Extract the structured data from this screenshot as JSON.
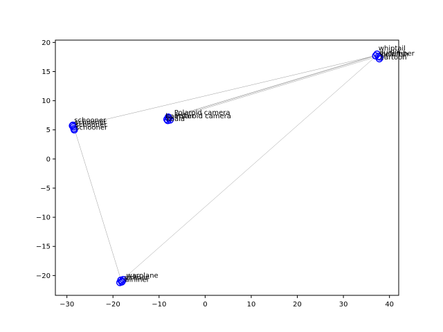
{
  "chart_data": {
    "type": "scatter",
    "title": "",
    "xlabel": "",
    "ylabel": "",
    "xlim": [
      -32.5,
      42.0
    ],
    "ylim": [
      -23.4,
      20.4
    ],
    "xticks": [
      -30,
      -20,
      -10,
      0,
      10,
      20,
      30,
      40
    ],
    "yticks": [
      -20,
      -15,
      -10,
      -5,
      0,
      5,
      10,
      15,
      20
    ],
    "grid": false,
    "marker_color": "#0000ff",
    "edge_color": "#808080",
    "clusters": [
      {
        "points": [
          {
            "x": -28.7,
            "y": 5.8,
            "label": "schooner"
          },
          {
            "x": -28.6,
            "y": 5.5,
            "label": "schooner"
          },
          {
            "x": -28.8,
            "y": 5.7,
            "label": "schooner"
          },
          {
            "x": -28.5,
            "y": 5.2,
            "label": "schooner"
          },
          {
            "x": -28.4,
            "y": 5.0,
            "label": "schooner"
          }
        ]
      },
      {
        "points": [
          {
            "x": -8.0,
            "y": 7.2,
            "label": "Polaroid camera"
          },
          {
            "x": -8.3,
            "y": 6.8,
            "label": "Polaroid camera"
          },
          {
            "x": -7.9,
            "y": 7.0,
            "label": "hamster"
          },
          {
            "x": -8.1,
            "y": 6.6,
            "label": "hamster"
          },
          {
            "x": -7.6,
            "y": 6.7,
            "label": "koala"
          }
        ]
      },
      {
        "points": [
          {
            "x": 37.3,
            "y": 18.0,
            "label": "whiptail"
          },
          {
            "x": 37.6,
            "y": 17.6,
            "label": "dunlin"
          },
          {
            "x": 37.9,
            "y": 17.5,
            "label": "cucumber"
          },
          {
            "x": 37.0,
            "y": 17.7,
            "label": "goldfish"
          },
          {
            "x": 37.8,
            "y": 17.2,
            "label": "cartoon"
          }
        ]
      },
      {
        "points": [
          {
            "x": -18.3,
            "y": -20.8,
            "label": "warplane"
          },
          {
            "x": -18.0,
            "y": -21.0,
            "label": "airliner"
          },
          {
            "x": -18.5,
            "y": -21.2,
            "label": "airliner"
          },
          {
            "x": -17.8,
            "y": -20.7,
            "label": "warplane"
          },
          {
            "x": -18.1,
            "y": -21.1,
            "label": "airliner"
          }
        ]
      }
    ],
    "edges": [
      [
        [
          -28.5,
          5.5
        ],
        [
          37.3,
          17.8
        ]
      ],
      [
        [
          -28.5,
          5.5
        ],
        [
          -18.2,
          -20.9
        ]
      ],
      [
        [
          -18.2,
          -20.9
        ],
        [
          37.3,
          17.8
        ]
      ],
      [
        [
          -7.8,
          7.0
        ],
        [
          37.3,
          17.8
        ]
      ],
      [
        [
          -7.9,
          6.8
        ],
        [
          37.4,
          17.6
        ]
      ],
      [
        [
          -8.0,
          7.1
        ],
        [
          37.5,
          17.9
        ]
      ]
    ],
    "annotations": [
      {
        "x": -28.4,
        "y": 6.3,
        "text": "schooner"
      },
      {
        "x": -28.3,
        "y": 5.9,
        "text": "schooner"
      },
      {
        "x": -28.2,
        "y": 5.5,
        "text": "schooner"
      },
      {
        "x": -28.1,
        "y": 5.0,
        "text": "schooner"
      },
      {
        "x": -6.7,
        "y": 7.6,
        "text": "Polaroid camera"
      },
      {
        "x": -6.5,
        "y": 7.0,
        "text": "Polaroid camera"
      },
      {
        "x": -8.6,
        "y": 7.0,
        "text": "hamster"
      },
      {
        "x": -8.4,
        "y": 6.5,
        "text": "koala"
      },
      {
        "x": 37.6,
        "y": 18.6,
        "text": "whiptail"
      },
      {
        "x": 37.8,
        "y": 17.9,
        "text": "dunlin"
      },
      {
        "x": 37.9,
        "y": 17.7,
        "text": "cucumber"
      },
      {
        "x": 38.2,
        "y": 17.6,
        "text": "goldfish"
      },
      {
        "x": 38.0,
        "y": 17.1,
        "text": "cartoon"
      },
      {
        "x": -17.1,
        "y": -20.4,
        "text": "warplane"
      },
      {
        "x": -17.6,
        "y": -20.7,
        "text": "airliner"
      },
      {
        "x": -17.4,
        "y": -21.1,
        "text": "airliner"
      }
    ]
  }
}
